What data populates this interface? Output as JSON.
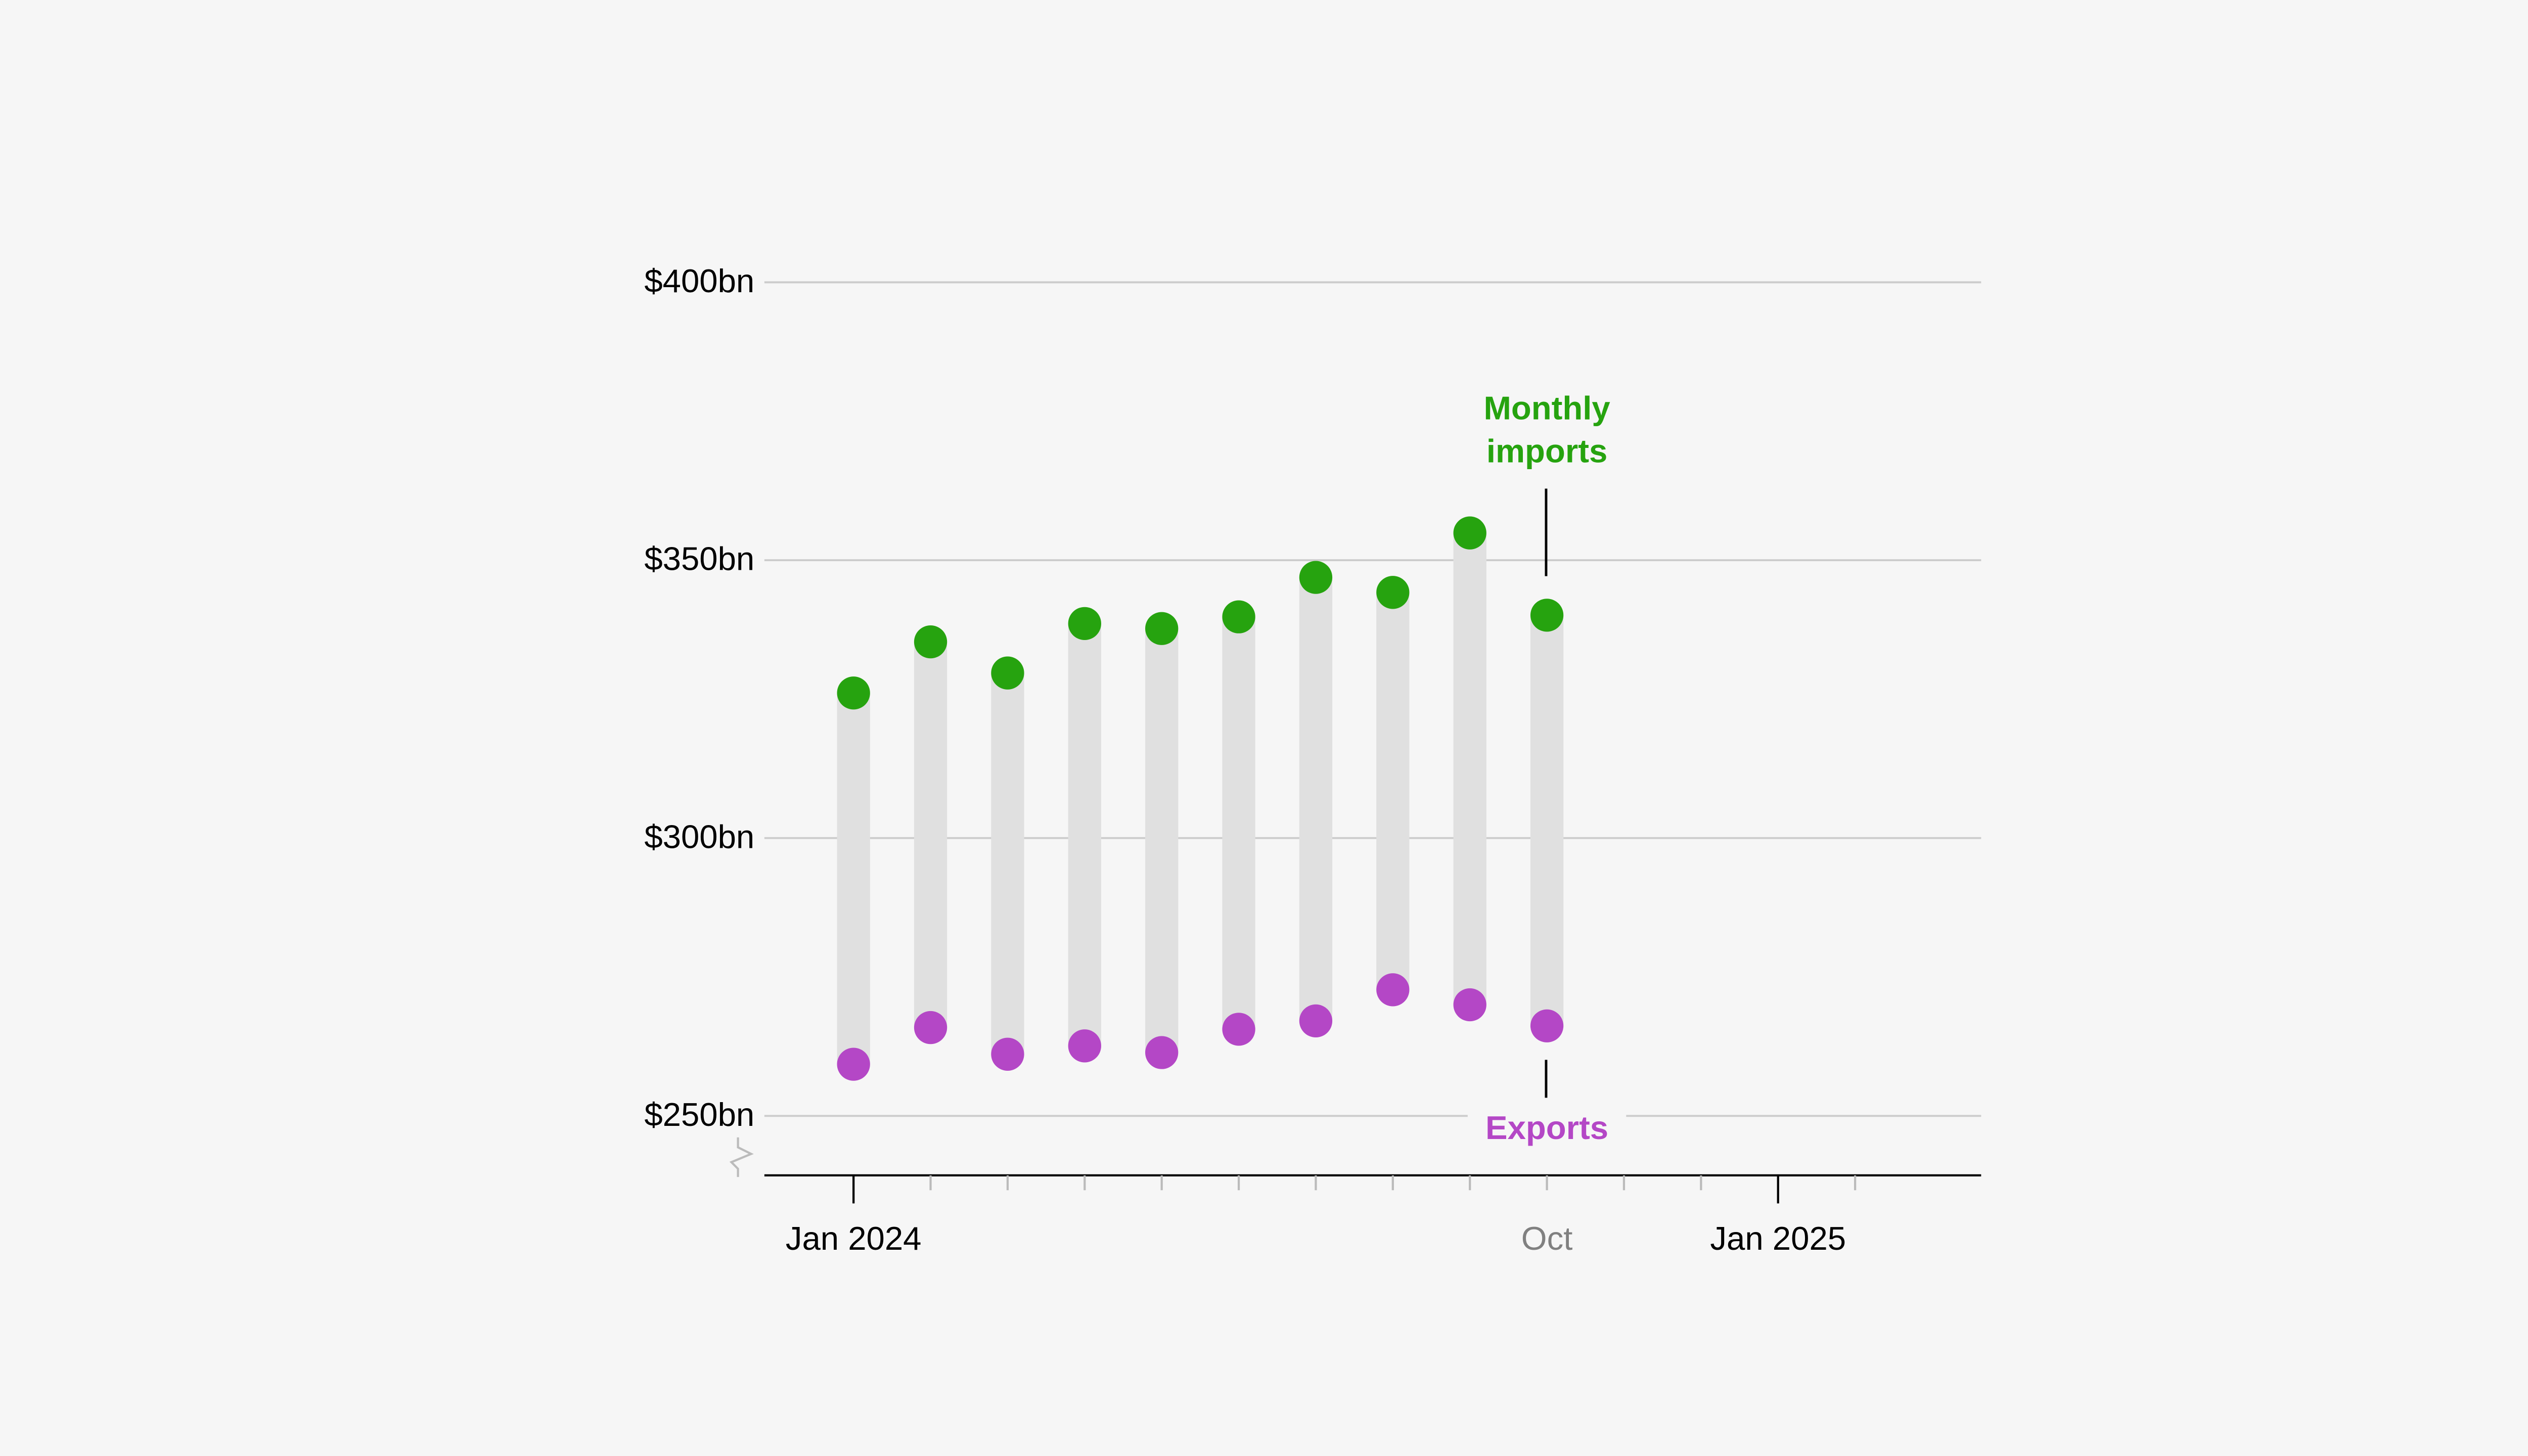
{
  "chart_data": {
    "type": "dot-range",
    "title": "",
    "xlabel": "",
    "ylabel": "",
    "ylim": [
      240,
      400
    ],
    "y_axis_break": true,
    "grid": true,
    "y_ticks": [
      {
        "value": 400,
        "label": "$400bn"
      },
      {
        "value": 350,
        "label": "$350bn"
      },
      {
        "value": 300,
        "label": "$300bn"
      },
      {
        "value": 250,
        "label": "$250bn"
      }
    ],
    "x_range": [
      "2023-12",
      "2025-03"
    ],
    "x_ticks": [
      {
        "month": "2024-01",
        "label": "Jan 2024",
        "major": true
      },
      {
        "month": "2024-02",
        "label": ""
      },
      {
        "month": "2024-03",
        "label": ""
      },
      {
        "month": "2024-04",
        "label": ""
      },
      {
        "month": "2024-05",
        "label": ""
      },
      {
        "month": "2024-06",
        "label": ""
      },
      {
        "month": "2024-07",
        "label": ""
      },
      {
        "month": "2024-08",
        "label": ""
      },
      {
        "month": "2024-09",
        "label": ""
      },
      {
        "month": "2024-10",
        "label": "Oct",
        "muted": true
      },
      {
        "month": "2024-11",
        "label": ""
      },
      {
        "month": "2024-12",
        "label": ""
      },
      {
        "month": "2025-01",
        "label": "Jan 2025",
        "major": true
      },
      {
        "month": "2025-02",
        "label": ""
      }
    ],
    "months": [
      "2024-01",
      "2024-02",
      "2024-03",
      "2024-04",
      "2024-05",
      "2024-06",
      "2024-07",
      "2024-08",
      "2024-09",
      "2024-10"
    ],
    "series": [
      {
        "name": "Monthly imports",
        "color": "#26a30f",
        "values": [
          326.1,
          335.3,
          329.7,
          338.6,
          337.7,
          339.8,
          346.9,
          344.2,
          354.9,
          340.1
        ]
      },
      {
        "name": "Exports",
        "color": "#b447c6",
        "values": [
          259.3,
          265.9,
          261.1,
          262.6,
          261.4,
          265.6,
          267.1,
          272.7,
          270.0,
          266.2
        ]
      }
    ],
    "range_bar_color": "#e0e0e0",
    "annotations": {
      "imports_line1": "Monthly",
      "imports_line2": "imports",
      "exports": "Exports"
    }
  }
}
